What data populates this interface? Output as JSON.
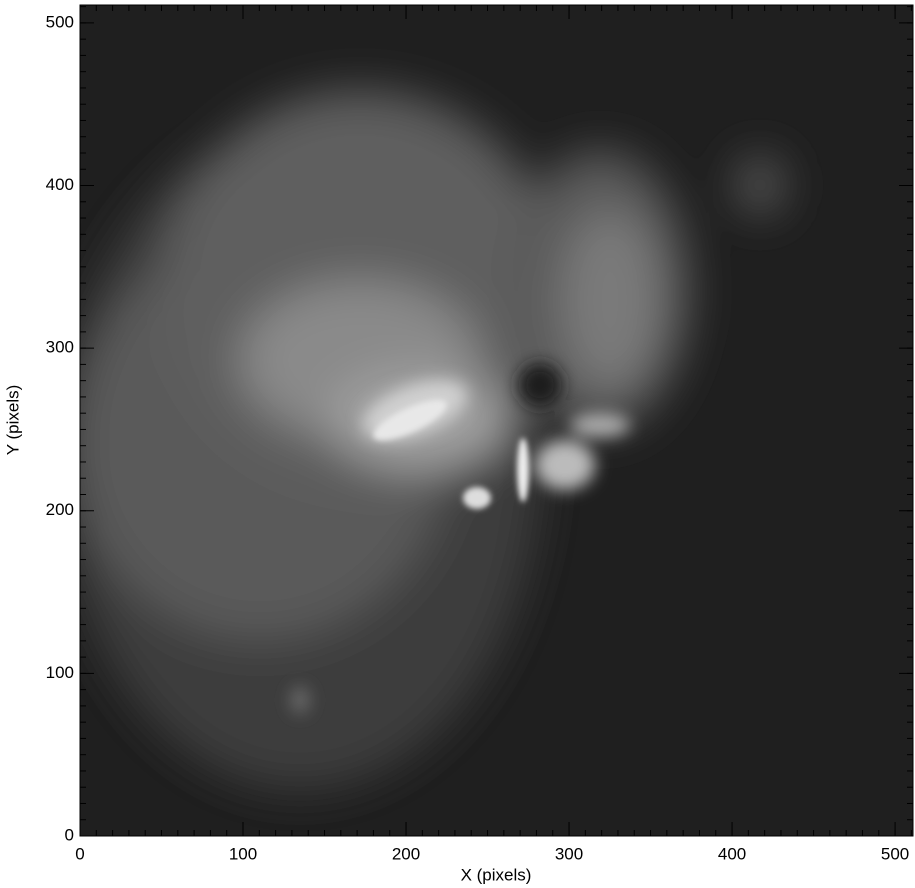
{
  "chart_data": {
    "type": "image",
    "xlabel": "X (pixels)",
    "ylabel": "Y (pixels)",
    "xlim": [
      0,
      511
    ],
    "ylim": [
      0,
      511
    ],
    "xticks": [
      0,
      100,
      200,
      300,
      400,
      500
    ],
    "yticks": [
      0,
      100,
      200,
      300,
      400,
      500
    ],
    "colormap": "gray"
  }
}
